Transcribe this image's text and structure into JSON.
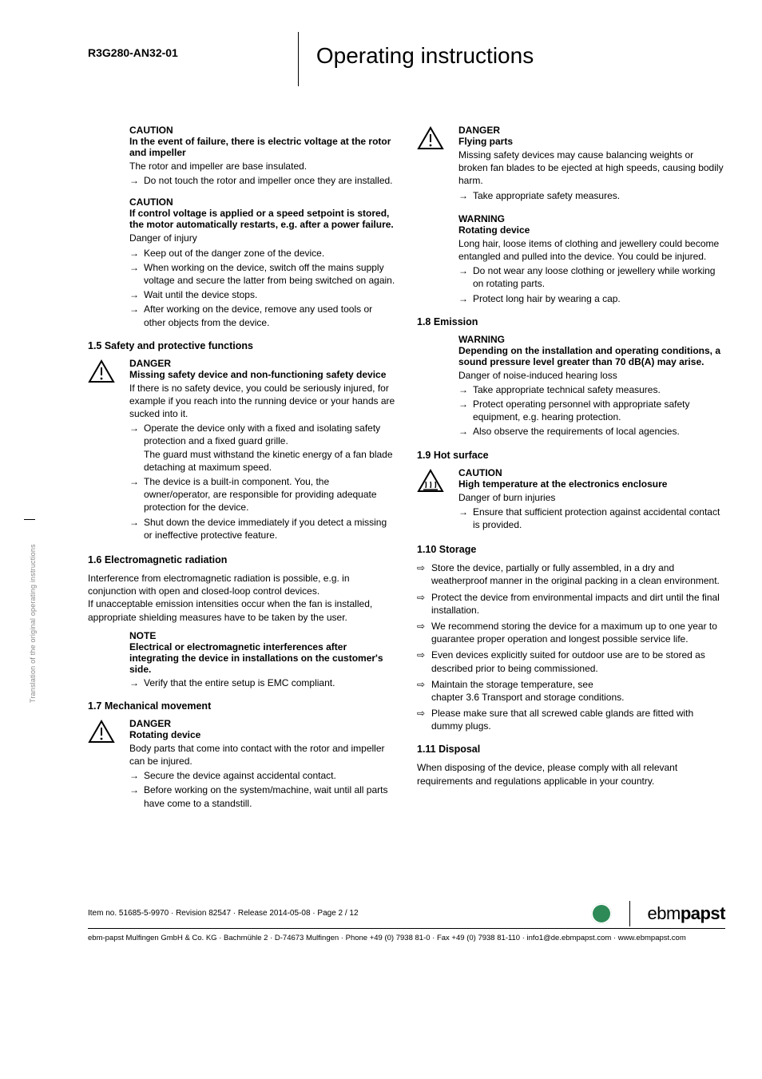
{
  "header": {
    "product_id": "R3G280-AN32-01",
    "title": "Operating instructions"
  },
  "side_text": "Translation of the original operating instructions",
  "left": {
    "caution1": {
      "label": "CAUTION",
      "subtitle": "In the event of failure, there is electric voltage at the rotor and impeller",
      "body": "The rotor and impeller are base insulated.",
      "items": [
        "Do not touch the rotor and impeller once they are installed."
      ]
    },
    "caution2": {
      "label": "CAUTION",
      "subtitle": "If control voltage is applied or a speed setpoint is stored, the motor automatically restarts, e.g. after a power failure.",
      "body": "Danger of injury",
      "items": [
        "Keep out of the danger zone of the device.",
        "When working on the device, switch off the mains supply voltage and secure the latter from being switched on again.",
        "Wait until the device stops.",
        "After working on the device, remove any used tools or other objects from the device."
      ]
    },
    "s15": {
      "heading": "1.5 Safety and protective functions",
      "danger": {
        "label": "DANGER",
        "subtitle": "Missing safety device and non-functioning safety device",
        "body": "If there is no safety device, you could be seriously injured, for example if you reach into the running device or your hands are sucked into it.",
        "items": [
          "Operate the device only with a fixed and isolating safety protection and a fixed guard grille.\nThe guard must withstand the kinetic energy of a fan blade detaching at maximum speed.",
          "The device is a built-in component. You, the owner/operator, are responsible for providing adequate protection for the device.",
          "Shut down the device immediately if you detect a missing or ineffective protective feature."
        ]
      }
    },
    "s16": {
      "heading": "1.6 Electromagnetic radiation",
      "body": "Interference from electromagnetic radiation is possible, e.g. in conjunction with open and closed-loop control devices.\nIf unacceptable emission intensities occur when the fan is installed, appropriate shielding measures have to be taken by the user.",
      "note": {
        "label": "NOTE",
        "subtitle": "Electrical or electromagnetic interferences after integrating the device in installations on the customer's side.",
        "items": [
          "Verify that the entire setup is EMC compliant."
        ]
      }
    },
    "s17": {
      "heading": "1.7 Mechanical movement",
      "danger": {
        "label": "DANGER",
        "subtitle": "Rotating device",
        "body": "Body parts that come into contact with the rotor and impeller can be injured.",
        "items": [
          "Secure the device against accidental contact.",
          "Before working on the system/machine, wait until all parts have come to a standstill."
        ]
      }
    }
  },
  "right": {
    "danger_flying": {
      "label": "DANGER",
      "subtitle": "Flying parts",
      "body": "Missing safety devices may cause balancing weights or broken fan blades to be ejected at high speeds, causing bodily harm.",
      "items": [
        "Take appropriate safety measures."
      ]
    },
    "warning_rotating": {
      "label": "WARNING",
      "subtitle": "Rotating device",
      "body": "Long hair, loose items of clothing and jewellery could become entangled and pulled into the device. You could be injured.",
      "items": [
        "Do not wear any loose clothing or jewellery while working on rotating parts.",
        "Protect long hair by wearing a cap."
      ]
    },
    "s18": {
      "heading": "1.8 Emission",
      "warning": {
        "label": "WARNING",
        "subtitle": "Depending on the installation and operating conditions, a sound pressure level greater than 70 dB(A) may arise.",
        "body": "Danger of noise-induced hearing loss",
        "items": [
          "Take appropriate technical safety measures.",
          "Protect operating personnel with appropriate safety equipment, e.g. hearing protection.",
          "Also observe the requirements of local agencies."
        ]
      }
    },
    "s19": {
      "heading": "1.9 Hot surface",
      "caution": {
        "label": "CAUTION",
        "subtitle": "High temperature at the electronics enclosure",
        "body": "Danger of burn injuries",
        "items": [
          "Ensure that sufficient protection against accidental contact is provided."
        ]
      }
    },
    "s110": {
      "heading": "1.10 Storage",
      "items": [
        "Store the device, partially or fully assembled, in a dry and weatherproof manner in the original packing in a clean environment.",
        "Protect the device from environmental impacts and dirt until the final installation.",
        "We recommend storing the device for a maximum up to one year to guarantee proper operation and longest possible service life.",
        "Even devices explicitly suited for outdoor use are to be stored as described prior to being commissioned.",
        "Maintain the storage temperature, see\nchapter 3.6 Transport and storage conditions.",
        "Please make sure that all screwed cable glands are fitted with dummy plugs."
      ]
    },
    "s111": {
      "heading": "1.11 Disposal",
      "body": "When disposing of the device, please comply with all relevant requirements and regulations applicable in your country."
    }
  },
  "footer": {
    "info": "Item no. 51685-5-9970 · Revision 82547 · Release 2014-05-08 · Page 2 / 12",
    "brand_a": "ebm",
    "brand_b": "papst",
    "address": "ebm-papst Mulfingen GmbH & Co. KG · Bachmühle 2 · D-74673 Mulfingen · Phone +49 (0) 7938 81-0 · Fax +49 (0) 7938 81-110 · info1@de.ebmpapst.com · www.ebmpapst.com"
  }
}
